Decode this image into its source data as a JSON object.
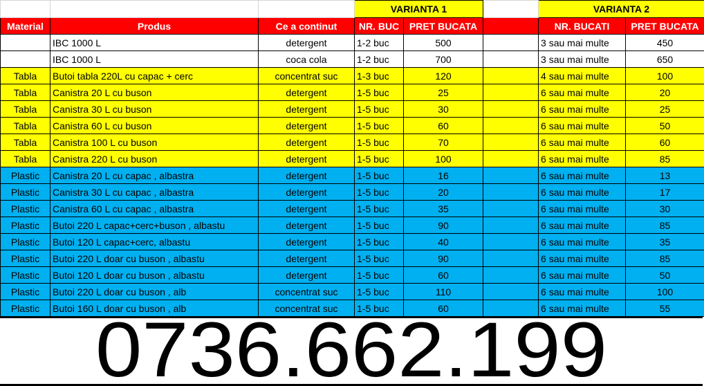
{
  "colors": {
    "header": "#ff0000",
    "tabla": "#ffff00",
    "plastic": "#00b0f0",
    "variant": "#ffff00"
  },
  "variants": {
    "v1": "VARIANTA 1",
    "v2": "VARIANTA 2"
  },
  "headers": {
    "material": "Material",
    "produs": "Produs",
    "continut": "Ce a continut",
    "nr1": "NR. BUC",
    "pret1": "PRET BUCATA",
    "nr2": "NR. BUCATI",
    "pret2": "PRET BUCATA"
  },
  "rows": [
    {
      "style": "white",
      "material": "",
      "produs": "IBC 1000 L",
      "continut": "detergent",
      "nr1": "1-2 buc",
      "pret1": "500",
      "nr2": "3 sau mai multe",
      "pret2": "450"
    },
    {
      "style": "white",
      "material": "",
      "produs": "IBC 1000 L",
      "continut": "coca cola",
      "nr1": "1-2 buc",
      "pret1": "700",
      "nr2": "3 sau mai multe",
      "pret2": "650"
    },
    {
      "style": "yellow",
      "material": "Tabla",
      "produs": "Butoi tabla 220L cu capac + cerc",
      "continut": "concentrat suc",
      "nr1": "1-3 buc",
      "pret1": "120",
      "nr2": "4 sau mai multe",
      "pret2": "100"
    },
    {
      "style": "yellow",
      "material": "Tabla",
      "produs": "Canistra 20 L cu buson",
      "continut": "detergent",
      "nr1": "1-5 buc",
      "pret1": "25",
      "nr2": "6 sau mai multe",
      "pret2": "20"
    },
    {
      "style": "yellow",
      "material": "Tabla",
      "produs": "Canistra 30 L cu buson",
      "continut": "detergent",
      "nr1": "1-5 buc",
      "pret1": "30",
      "nr2": "6 sau mai multe",
      "pret2": "25"
    },
    {
      "style": "yellow",
      "material": "Tabla",
      "produs": "Canistra 60 L cu buson",
      "continut": "detergent",
      "nr1": "1-5 buc",
      "pret1": "60",
      "nr2": "6 sau mai multe",
      "pret2": "50"
    },
    {
      "style": "yellow",
      "material": "Tabla",
      "produs": "Canistra 100 L cu buson",
      "continut": "detergent",
      "nr1": "1-5 buc",
      "pret1": "70",
      "nr2": "6 sau mai multe",
      "pret2": "60"
    },
    {
      "style": "yellow",
      "material": "Tabla",
      "produs": "Canistra 220 L cu buson",
      "continut": "detergent",
      "nr1": "1-5 buc",
      "pret1": "100",
      "nr2": "6 sau mai multe",
      "pret2": "85"
    },
    {
      "style": "blue",
      "material": "Plastic",
      "produs": "Canistra 20 L cu capac , albastra",
      "continut": "detergent",
      "nr1": "1-5 buc",
      "pret1": "16",
      "nr2": "6 sau mai multe",
      "pret2": "13"
    },
    {
      "style": "blue",
      "material": "Plastic",
      "produs": "Canistra 30 L cu capac , albastra",
      "continut": "detergent",
      "nr1": "1-5 buc",
      "pret1": "20",
      "nr2": "6 sau mai multe",
      "pret2": "17"
    },
    {
      "style": "blue",
      "material": "Plastic",
      "produs": "Canistra 60 L cu capac , albastra",
      "continut": "detergent",
      "nr1": "1-5 buc",
      "pret1": "35",
      "nr2": "6 sau mai multe",
      "pret2": "30"
    },
    {
      "style": "blue",
      "material": "Plastic",
      "produs": "Butoi 220 L capac+cerc+buson , albastu",
      "continut": "detergent",
      "nr1": "1-5 buc",
      "pret1": "90",
      "nr2": "6 sau mai multe",
      "pret2": "85"
    },
    {
      "style": "blue",
      "material": "Plastic",
      "produs": "Butoi 120 L capac+cerc, albastu",
      "continut": "detergent",
      "nr1": "1-5 buc",
      "pret1": "40",
      "nr2": "6 sau mai multe",
      "pret2": "35"
    },
    {
      "style": "blue",
      "material": "Plastic",
      "produs": "Butoi 220 L doar cu buson , albastu",
      "continut": "detergent",
      "nr1": "1-5 buc",
      "pret1": "90",
      "nr2": "6 sau mai multe",
      "pret2": "85"
    },
    {
      "style": "blue",
      "material": "Plastic",
      "produs": "Butoi 120 L doar cu buson , albastu",
      "continut": "detergent",
      "nr1": "1-5 buc",
      "pret1": "60",
      "nr2": "6 sau mai multe",
      "pret2": "50"
    },
    {
      "style": "blue",
      "material": "Plastic",
      "produs": "Butoi 220 L doar cu buson , alb",
      "continut": "concentrat suc",
      "nr1": "1-5 buc",
      "pret1": "110",
      "nr2": "6 sau mai multe",
      "pret2": "100"
    },
    {
      "style": "blue",
      "material": "Plastic",
      "produs": "Butoi 160 L doar cu buson , alb",
      "continut": "concentrat suc",
      "nr1": "1-5 buc",
      "pret1": "60",
      "nr2": "6 sau mai multe",
      "pret2": "55"
    }
  ],
  "phone": "0736.662.199"
}
